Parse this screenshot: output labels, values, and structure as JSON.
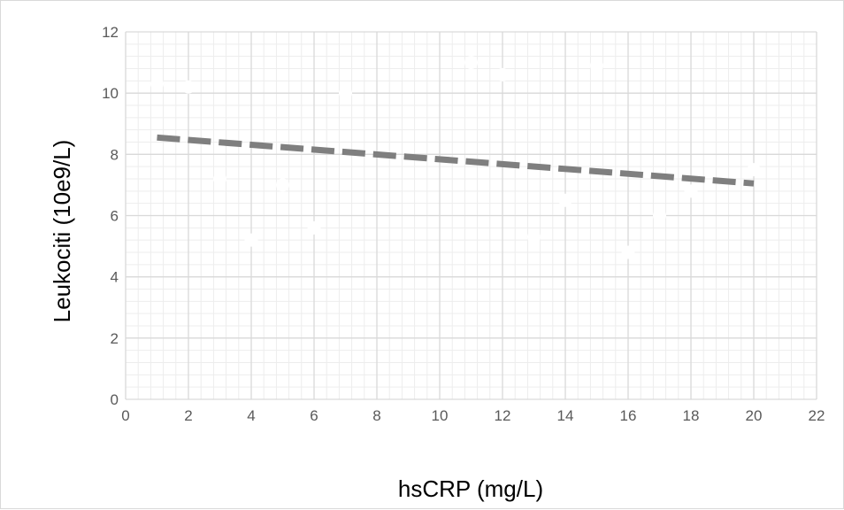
{
  "chart_data": {
    "type": "scatter",
    "title": "",
    "xlabel": "hsCRP  (mg/L)",
    "ylabel": "Leukociti (10e9/L)",
    "xlim": [
      0,
      22
    ],
    "ylim": [
      0,
      12
    ],
    "x_ticks": [
      0,
      2,
      4,
      6,
      8,
      10,
      12,
      14,
      16,
      18,
      20,
      22
    ],
    "y_ticks": [
      0,
      2,
      4,
      6,
      8,
      10,
      12
    ],
    "x_minor_step": 0.4,
    "y_minor_step": 0.4,
    "grid": true,
    "legend": "none",
    "series": [
      {
        "points": [
          {
            "x": 1,
            "y": 10.3
          },
          {
            "x": 2,
            "y": 10.2
          },
          {
            "x": 3,
            "y": 7.2
          },
          {
            "x": 4,
            "y": 5.2
          },
          {
            "x": 5,
            "y": 7.0
          },
          {
            "x": 6,
            "y": 5.6
          },
          {
            "x": 7,
            "y": 10.0
          },
          {
            "x": 11,
            "y": 11.0
          },
          {
            "x": 12,
            "y": 10.6
          },
          {
            "x": 13,
            "y": 5.3
          },
          {
            "x": 14,
            "y": 6.5
          },
          {
            "x": 15,
            "y": 10.9
          },
          {
            "x": 16,
            "y": 4.8
          },
          {
            "x": 17,
            "y": 6.0
          },
          {
            "x": 18,
            "y": 6.8
          },
          {
            "x": 20,
            "y": 7.5
          }
        ],
        "marker_color": "#ffffff"
      }
    ],
    "trendline": {
      "type": "linear",
      "x_start": 1,
      "y_start": 8.55,
      "x_end": 20,
      "y_end": 7.05,
      "color": "#7f7f7f",
      "style": "dashed"
    },
    "colors": {
      "major_grid": "#d9d9d9",
      "minor_grid": "#ededed",
      "tick_label": "#595959",
      "axis_title": "#000000"
    }
  }
}
